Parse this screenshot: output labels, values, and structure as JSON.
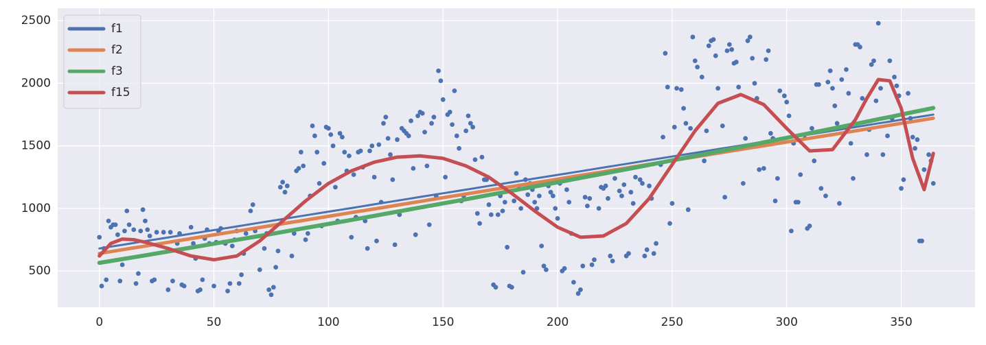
{
  "chart_data": {
    "type": "scatter",
    "xlim": [
      -18.2,
      382.2
    ],
    "ylim": [
      210,
      2600
    ],
    "xticks": [
      0,
      50,
      100,
      150,
      200,
      250,
      300,
      350
    ],
    "yticks": [
      500,
      1000,
      1500,
      2000,
      2500
    ],
    "grid": true,
    "legend": "upper left",
    "scatter": {
      "color": "#4c72b0",
      "x": [
        0,
        1,
        2,
        3,
        4,
        5,
        6,
        7,
        8,
        9,
        10,
        11,
        12,
        13,
        15,
        16,
        17,
        18,
        19,
        20,
        21,
        22,
        23,
        24,
        25,
        28,
        30,
        31,
        32,
        34,
        35,
        36,
        37,
        40,
        41,
        42,
        43,
        44,
        45,
        46,
        47,
        48,
        50,
        51,
        52,
        53,
        54,
        55,
        56,
        57,
        58,
        59,
        60,
        61,
        62,
        63,
        64,
        66,
        67,
        68,
        70,
        72,
        73,
        74,
        75,
        76,
        77,
        78,
        79,
        80,
        81,
        82,
        84,
        85,
        86,
        87,
        88,
        89,
        90,
        91,
        92,
        93,
        94,
        95,
        96,
        97,
        98,
        99,
        100,
        101,
        102,
        103,
        104,
        105,
        106,
        107,
        108,
        109,
        110,
        111,
        112,
        113,
        114,
        115,
        116,
        117,
        118,
        119,
        120,
        121,
        122,
        123,
        124,
        125,
        126,
        127,
        128,
        129,
        130,
        131,
        132,
        133,
        134,
        135,
        136,
        137,
        138,
        139,
        140,
        141,
        142,
        143,
        144,
        145,
        146,
        147,
        148,
        149,
        150,
        151,
        152,
        153,
        154,
        155,
        156,
        157,
        158,
        159,
        160,
        161,
        162,
        163,
        164,
        165,
        166,
        167,
        168,
        169,
        170,
        171,
        172,
        173,
        174,
        175,
        176,
        177,
        178,
        179,
        180,
        181,
        182,
        183,
        184,
        185,
        186,
        187,
        188,
        189,
        190,
        191,
        192,
        193,
        194,
        195,
        196,
        197,
        198,
        199,
        200,
        201,
        202,
        203,
        204,
        205,
        206,
        207,
        209,
        210,
        211,
        212,
        213,
        214,
        215,
        216,
        218,
        219,
        220,
        221,
        222,
        223,
        224,
        225,
        227,
        228,
        229,
        230,
        231,
        232,
        233,
        234,
        236,
        237,
        238,
        239,
        240,
        241,
        242,
        243,
        245,
        246,
        247,
        248,
        249,
        250,
        251,
        252,
        254,
        255,
        256,
        257,
        258,
        259,
        260,
        261,
        263,
        264,
        265,
        266,
        267,
        268,
        269,
        270,
        272,
        273,
        274,
        275,
        276,
        277,
        278,
        279,
        281,
        282,
        283,
        284,
        285,
        286,
        287,
        288,
        290,
        291,
        292,
        293,
        294,
        295,
        296,
        297,
        299,
        300,
        301,
        302,
        303,
        304,
        305,
        306,
        308,
        309,
        310,
        311,
        312,
        313,
        314,
        315,
        317,
        318,
        319,
        320,
        321,
        322,
        323,
        324,
        326,
        327,
        328,
        329,
        330,
        331,
        332,
        333,
        335,
        336,
        337,
        338,
        339,
        340,
        341,
        342,
        344,
        345,
        346,
        347,
        348,
        349,
        350,
        351,
        353,
        354,
        355,
        356,
        357,
        358,
        359,
        360,
        362,
        363,
        364
      ],
      "values": [
        770,
        380,
        680,
        430,
        900,
        850,
        870,
        870,
        790,
        420,
        550,
        820,
        980,
        870,
        830,
        400,
        480,
        820,
        990,
        900,
        830,
        780,
        420,
        430,
        810,
        810,
        350,
        810,
        420,
        720,
        800,
        390,
        380,
        850,
        720,
        600,
        340,
        350,
        430,
        760,
        830,
        720,
        380,
        730,
        820,
        840,
        730,
        720,
        340,
        400,
        700,
        750,
        820,
        400,
        470,
        640,
        800,
        980,
        1030,
        820,
        510,
        680,
        800,
        350,
        310,
        370,
        530,
        660,
        1170,
        1210,
        1130,
        1180,
        620,
        800,
        1300,
        1320,
        1450,
        1340,
        750,
        800,
        1100,
        1660,
        1580,
        1450,
        1200,
        860,
        1360,
        1650,
        1640,
        1590,
        1500,
        1170,
        900,
        1600,
        1570,
        1450,
        1300,
        1420,
        770,
        1270,
        930,
        1450,
        1460,
        1330,
        900,
        680,
        1460,
        1500,
        1250,
        740,
        1510,
        1050,
        1680,
        1730,
        1560,
        1430,
        1230,
        710,
        1550,
        950,
        1640,
        1620,
        1600,
        1580,
        1700,
        1320,
        790,
        1740,
        1770,
        1760,
        1610,
        1340,
        870,
        1680,
        1730,
        1100,
        2100,
        2020,
        1870,
        1250,
        1750,
        1770,
        1670,
        1940,
        1580,
        1480,
        1060,
        1100,
        1620,
        1740,
        1680,
        1650,
        1390,
        960,
        880,
        1410,
        1230,
        1230,
        1030,
        950,
        390,
        370,
        950,
        1100,
        980,
        1050,
        690,
        380,
        370,
        1060,
        1280,
        1180,
        1000,
        490,
        1230,
        1110,
        1200,
        1150,
        1050,
        1000,
        1100,
        700,
        540,
        510,
        1180,
        1130,
        1100,
        1000,
        920,
        1200,
        500,
        520,
        1150,
        1050,
        800,
        410,
        320,
        350,
        540,
        1090,
        1020,
        1080,
        550,
        590,
        1000,
        1170,
        1160,
        1180,
        1080,
        620,
        580,
        1240,
        1140,
        1100,
        1190,
        620,
        640,
        1130,
        1040,
        1250,
        1230,
        1200,
        620,
        670,
        1180,
        1080,
        640,
        720,
        1350,
        1570,
        2240,
        1970,
        880,
        1040,
        1650,
        1960,
        1950,
        1800,
        1680,
        990,
        1640,
        2370,
        2180,
        2130,
        2050,
        1380,
        1620,
        2300,
        2340,
        2350,
        2220,
        1960,
        1660,
        1090,
        2260,
        2310,
        2270,
        2160,
        2170,
        1970,
        1200,
        1560,
        2340,
        2370,
        2200,
        2000,
        1880,
        1310,
        1320,
        2190,
        2260,
        1600,
        1560,
        1060,
        1240,
        1940,
        1900,
        1850,
        1740,
        820,
        1520,
        1050,
        1050,
        1270,
        1560,
        840,
        860,
        1640,
        1380,
        1990,
        1990,
        1160,
        1100,
        2010,
        2100,
        1960,
        1820,
        1680,
        1040,
        2030,
        2110,
        1920,
        1520,
        1240,
        2310,
        2310,
        2290,
        1880,
        1430,
        1630,
        2150,
        2180,
        1860,
        2480,
        1960,
        1430,
        1580,
        2180,
        1720,
        2050,
        1980,
        1900,
        1160,
        1230,
        1920,
        1720,
        1570,
        1480,
        1550,
        740,
        740,
        1310,
        1430,
        1380,
        1200
      ]
    },
    "x": [
      0,
      5,
      10,
      15,
      20,
      30,
      40,
      50,
      60,
      70,
      80,
      90,
      100,
      110,
      120,
      130,
      140,
      150,
      160,
      170,
      180,
      190,
      200,
      210,
      220,
      230,
      240,
      250,
      260,
      270,
      280,
      290,
      300,
      310,
      320,
      330,
      335,
      340,
      345,
      350,
      355,
      360,
      364
    ],
    "series": [
      {
        "name": "f1",
        "color": "#4c72b0",
        "linewidth": 3,
        "values": [
          680,
          695,
          709,
          724,
          739,
          768,
          798,
          827,
          856,
          886,
          915,
          945,
          974,
          1003,
          1033,
          1062,
          1092,
          1121,
          1150,
          1180,
          1209,
          1239,
          1268,
          1297,
          1327,
          1356,
          1386,
          1415,
          1444,
          1474,
          1503,
          1533,
          1562,
          1591,
          1621,
          1650,
          1665,
          1680,
          1694,
          1709,
          1724,
          1738,
          1750
        ]
      },
      {
        "name": "f2",
        "color": "#dd8452",
        "linewidth": 5,
        "values": [
          640,
          655,
          670,
          685,
          699,
          729,
          759,
          789,
          818,
          848,
          878,
          907,
          937,
          967,
          996,
          1026,
          1056,
          1086,
          1115,
          1145,
          1175,
          1204,
          1234,
          1264,
          1293,
          1323,
          1353,
          1383,
          1412,
          1442,
          1472,
          1501,
          1531,
          1561,
          1590,
          1620,
          1635,
          1650,
          1665,
          1680,
          1694,
          1709,
          1721
        ]
      },
      {
        "name": "f3",
        "color": "#55a868",
        "linewidth": 6,
        "values": [
          565,
          580,
          595,
          610,
          625,
          656,
          687,
          718,
          749,
          780,
          812,
          844,
          876,
          908,
          941,
          974,
          1007,
          1040,
          1073,
          1107,
          1141,
          1175,
          1209,
          1244,
          1278,
          1313,
          1348,
          1384,
          1419,
          1455,
          1491,
          1528,
          1564,
          1601,
          1638,
          1675,
          1694,
          1713,
          1731,
          1750,
          1769,
          1788,
          1803
        ]
      },
      {
        "name": "f15",
        "color": "#c44e52",
        "linewidth": 5,
        "values": [
          620,
          720,
          755,
          750,
          730,
          680,
          620,
          590,
          620,
          740,
          900,
          1060,
          1200,
          1300,
          1370,
          1410,
          1420,
          1400,
          1340,
          1250,
          1120,
          980,
          850,
          770,
          780,
          880,
          1080,
          1350,
          1620,
          1840,
          1910,
          1830,
          1640,
          1460,
          1470,
          1710,
          1880,
          2030,
          2020,
          1800,
          1400,
          1150,
          1440
        ]
      }
    ]
  }
}
